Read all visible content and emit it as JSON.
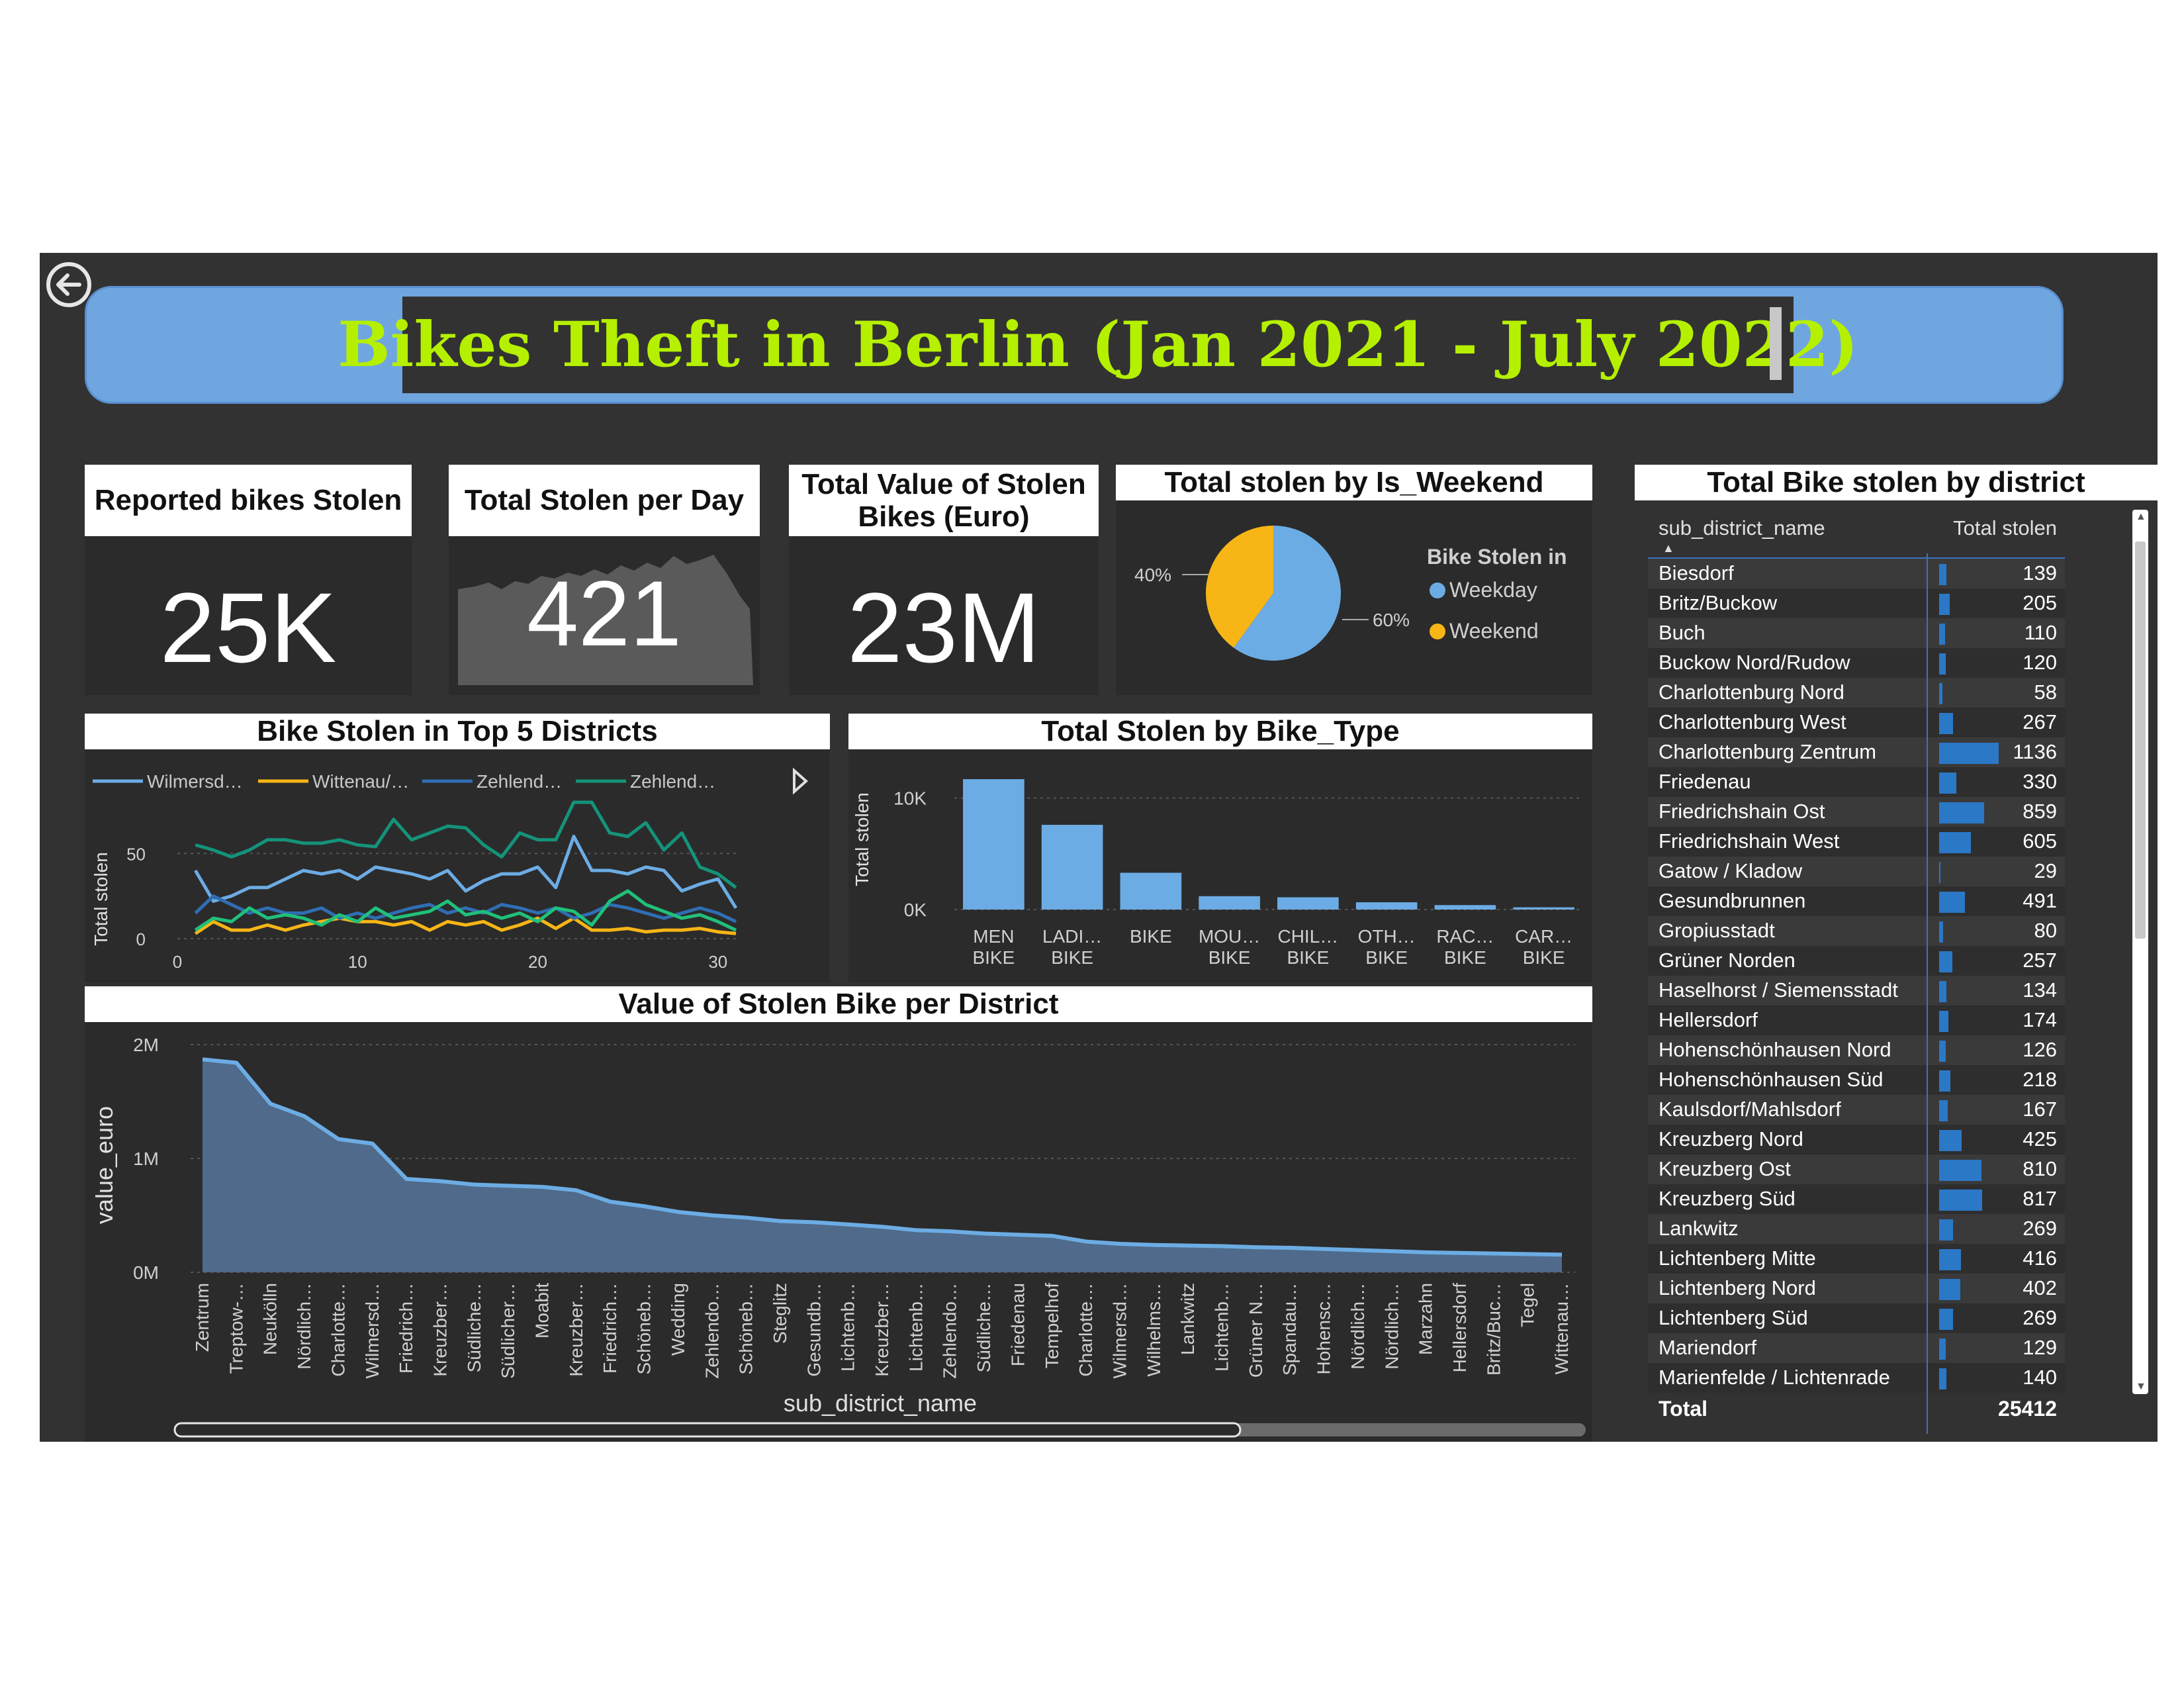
{
  "title": "Bikes Theft in Berlin (Jan 2021 - July 2022)",
  "cards": [
    {
      "label": "Reported bikes Stolen",
      "value": "25K"
    },
    {
      "label": "Total Stolen per Day",
      "value": "421"
    },
    {
      "label": "Total Value of Stolen Bikes (Euro)",
      "value": "23M"
    }
  ],
  "colors": {
    "accent": "#b5f000",
    "banner": "#6fa6e0",
    "bar": "#6cace4",
    "weekend": "#f7b516",
    "teal": "#14937a",
    "darkblue": "#2f6eb3"
  },
  "chart_data": [
    {
      "type": "pie",
      "title": "Total stolen by Is_Weekend",
      "legend_title": "Bike Stolen in",
      "legend_position": "right",
      "slices": [
        {
          "name": "Weekday",
          "percent": 60,
          "label": "60%",
          "color": "#6cace4"
        },
        {
          "name": "Weekend",
          "percent": 40,
          "label": "40%",
          "color": "#f7b516"
        }
      ]
    },
    {
      "type": "line",
      "title": "Bike Stolen in Top 5 Districts",
      "ylabel": "Total stolen",
      "xlim": [
        0,
        31
      ],
      "ylim": [
        0,
        80
      ],
      "xticks": [
        0,
        10,
        20,
        30
      ],
      "yticks": [
        0,
        50
      ],
      "legend_position": "top",
      "series": [
        {
          "name": "Wilmersd…",
          "color": "#6cace4",
          "values": [
            40,
            22,
            25,
            30,
            30,
            35,
            40,
            38,
            40,
            35,
            42,
            40,
            38,
            35,
            40,
            28,
            34,
            38,
            38,
            42,
            30,
            60,
            40,
            40,
            38,
            42,
            40,
            28,
            32,
            35,
            18
          ]
        },
        {
          "name": "Wittenau/…",
          "color": "#f7b516",
          "values": [
            3,
            10,
            5,
            5,
            8,
            5,
            8,
            10,
            12,
            10,
            10,
            8,
            10,
            5,
            10,
            8,
            10,
            5,
            8,
            12,
            6,
            12,
            5,
            5,
            6,
            4,
            5,
            5,
            6,
            4,
            3
          ]
        },
        {
          "name": "Zehlend…",
          "color": "#2f6eb3",
          "values": [
            15,
            25,
            20,
            15,
            18,
            15,
            15,
            18,
            12,
            15,
            12,
            15,
            18,
            20,
            15,
            18,
            15,
            20,
            18,
            15,
            18,
            12,
            15,
            20,
            18,
            15,
            12,
            15,
            18,
            15,
            10
          ]
        },
        {
          "name": "Zehlend…",
          "color": "#14937a",
          "values": [
            55,
            52,
            48,
            52,
            58,
            58,
            56,
            56,
            58,
            55,
            54,
            70,
            58,
            62,
            66,
            65,
            55,
            48,
            62,
            58,
            58,
            80,
            80,
            62,
            60,
            68,
            52,
            62,
            42,
            38,
            30
          ]
        },
        {
          "name": "",
          "color": "#20c07a",
          "values": [
            5,
            12,
            10,
            18,
            12,
            14,
            12,
            8,
            14,
            10,
            18,
            12,
            14,
            16,
            22,
            14,
            16,
            12,
            15,
            10,
            18,
            16,
            8,
            22,
            28,
            20,
            16,
            12,
            14,
            10,
            5
          ]
        }
      ]
    },
    {
      "type": "bar",
      "title": "Total Stolen by Bike_Type",
      "ylabel": "Total stolen",
      "ylim": [
        0,
        12000
      ],
      "yticks": [
        {
          "v": 0,
          "label": "0K"
        },
        {
          "v": 10000,
          "label": "10K"
        }
      ],
      "categories": [
        [
          "MEN",
          "BIKE"
        ],
        [
          "LADI…",
          "BIKE"
        ],
        [
          "BIKE"
        ],
        [
          "MOU…",
          "BIKE"
        ],
        [
          "CHIL…",
          "BIKE"
        ],
        [
          "OTH…",
          "BIKE"
        ],
        [
          "RAC…",
          "BIKE"
        ],
        [
          "CAR…",
          "BIKE"
        ]
      ],
      "values": [
        11700,
        7600,
        3300,
        1200,
        1100,
        650,
        400,
        200
      ]
    },
    {
      "type": "area",
      "title": "Value of Stolen Bike per District",
      "xlabel": "sub_district_name",
      "ylabel": "value_euro",
      "ylim": [
        0,
        2000000
      ],
      "yticks": [
        {
          "v": 0,
          "label": "0M"
        },
        {
          "v": 1000000,
          "label": "1M"
        },
        {
          "v": 2000000,
          "label": "2M"
        }
      ],
      "categories": [
        "Zentrum",
        "Treptow-…",
        "Neukölln",
        "Nördlich…",
        "Charlotte…",
        "Wilmersd…",
        "Friedrich…",
        "Kreuzber…",
        "Südliche…",
        "Südlicher…",
        "Moabit",
        "Kreuzber…",
        "Friedrich…",
        "Schöneb…",
        "Wedding",
        "Zehlendo…",
        "Schöneb…",
        "Steglitz",
        "Gesundb…",
        "Lichtenb…",
        "Kreuzber…",
        "Lichtenb…",
        "Zehlendo…",
        "Südliche…",
        "Friedenau",
        "Tempelhof",
        "Charlotte…",
        "Wilmersd…",
        "Wilhelms…",
        "Lankwitz",
        "Lichtenb…",
        "Grüner N…",
        "Spandau…",
        "Hohensc…",
        "Nördlich…",
        "Nördlich…",
        "Marzahn",
        "Hellersdorf",
        "Britz/Buc…",
        "Tegel",
        "Wittenau…"
      ],
      "values": [
        1870000,
        1840000,
        1480000,
        1370000,
        1170000,
        1130000,
        820000,
        800000,
        770000,
        760000,
        750000,
        720000,
        620000,
        580000,
        530000,
        500000,
        480000,
        450000,
        440000,
        420000,
        400000,
        370000,
        360000,
        340000,
        330000,
        320000,
        270000,
        250000,
        240000,
        235000,
        230000,
        220000,
        215000,
        205000,
        195000,
        185000,
        175000,
        170000,
        165000,
        160000,
        155000
      ]
    },
    {
      "type": "table",
      "title": "Total Bike stolen by district",
      "columns": [
        "sub_district_name",
        "Total stolen"
      ],
      "rows": [
        {
          "name": "Biesdorf",
          "value": 139
        },
        {
          "name": "Britz/Buckow",
          "value": 205
        },
        {
          "name": "Buch",
          "value": 110
        },
        {
          "name": "Buckow Nord/Rudow",
          "value": 120
        },
        {
          "name": "Charlottenburg Nord",
          "value": 58
        },
        {
          "name": "Charlottenburg West",
          "value": 267
        },
        {
          "name": "Charlottenburg Zentrum",
          "value": 1136
        },
        {
          "name": "Friedenau",
          "value": 330
        },
        {
          "name": "Friedrichshain Ost",
          "value": 859
        },
        {
          "name": "Friedrichshain West",
          "value": 605
        },
        {
          "name": "Gatow / Kladow",
          "value": 29
        },
        {
          "name": "Gesundbrunnen",
          "value": 491
        },
        {
          "name": "Gropiusstadt",
          "value": 80
        },
        {
          "name": "Grüner Norden",
          "value": 257
        },
        {
          "name": "Haselhorst / Siemensstadt",
          "value": 134
        },
        {
          "name": "Hellersdorf",
          "value": 174
        },
        {
          "name": "Hohenschönhausen Nord",
          "value": 126
        },
        {
          "name": "Hohenschönhausen Süd",
          "value": 218
        },
        {
          "name": "Kaulsdorf/Mahlsdorf",
          "value": 167
        },
        {
          "name": "Kreuzberg Nord",
          "value": 425
        },
        {
          "name": "Kreuzberg Ost",
          "value": 810
        },
        {
          "name": "Kreuzberg Süd",
          "value": 817
        },
        {
          "name": "Lankwitz",
          "value": 269
        },
        {
          "name": "Lichtenberg Mitte",
          "value": 416
        },
        {
          "name": "Lichtenberg Nord",
          "value": 402
        },
        {
          "name": "Lichtenberg Süd",
          "value": 269
        },
        {
          "name": "Mariendorf",
          "value": 129
        },
        {
          "name": "Marienfelde / Lichtenrade",
          "value": 140
        }
      ],
      "total_label": "Total",
      "total_value": "25412"
    }
  ]
}
